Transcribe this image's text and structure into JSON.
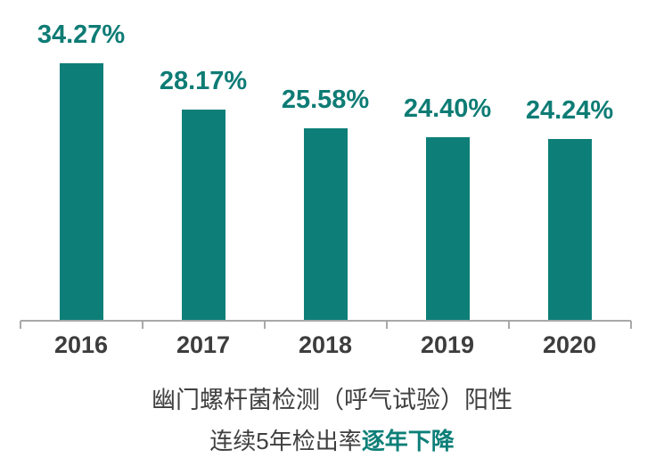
{
  "chart_data": {
    "type": "bar",
    "categories": [
      "2016",
      "2017",
      "2018",
      "2019",
      "2020"
    ],
    "values": [
      34.27,
      28.17,
      25.58,
      24.4,
      24.24
    ],
    "value_labels": [
      "34.27%",
      "28.17%",
      "25.58%",
      "24.40%",
      "24.24%"
    ],
    "title": "",
    "xlabel": "",
    "ylabel": "",
    "ylim": [
      0,
      42
    ],
    "grid": false,
    "legend": "none",
    "bar_color": "#0d7f78",
    "value_label_color": "#0e7c75",
    "category_label_color": "#3d3d3d",
    "axis_color": "#a9a9a9"
  },
  "caption": {
    "line1": "幽门螺杆菌检测（呼气试验）阳性",
    "line2_normal": "连续5年检出率",
    "line2_highlight": "逐年下降",
    "text_color": "#3f3f3f",
    "highlight_color": "#0d7f78"
  }
}
